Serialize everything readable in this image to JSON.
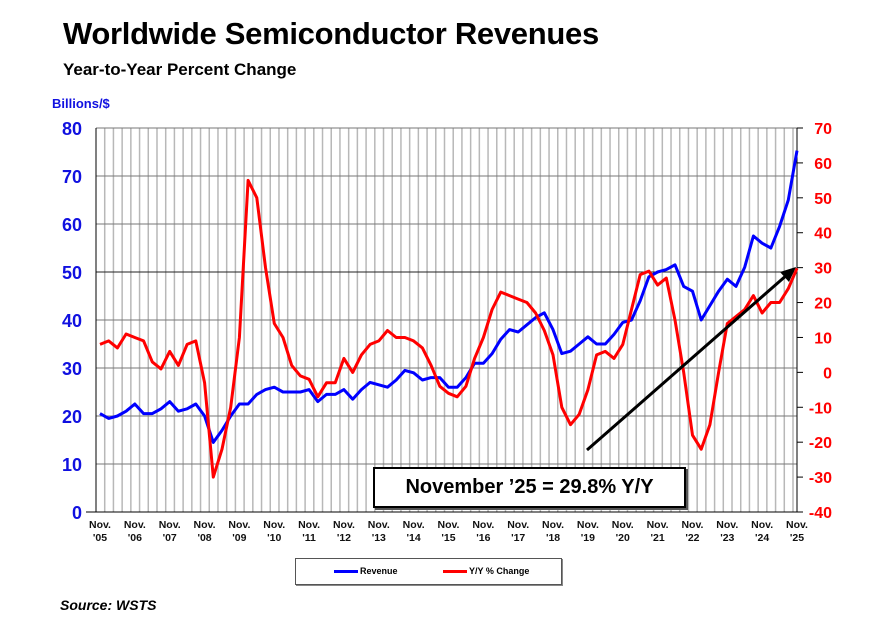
{
  "title": "Worldwide Semiconductor Revenues",
  "subtitle": "Year-to-Year Percent Change",
  "source": "Source: WSTS",
  "annotation": "November ’25 = 29.8% Y/Y",
  "chart_data": {
    "type": "line",
    "title": "Worldwide Semiconductor Revenues",
    "subtitle": "Year-to-Year Percent Change",
    "ylabel": "Billions/$",
    "ylim": [
      0,
      80
    ],
    "y2lim": [
      -40,
      70
    ],
    "yticks": [
      "0",
      "10",
      "20",
      "30",
      "40",
      "50",
      "60",
      "70",
      "80"
    ],
    "y2ticks": [
      "-40",
      "-30",
      "-20",
      "-10",
      "0",
      "10",
      "20",
      "30",
      "40",
      "50",
      "60",
      "70"
    ],
    "xtick_labels": [
      [
        "Nov.",
        "'05"
      ],
      [
        "Nov.",
        "'06"
      ],
      [
        "Nov.",
        "'07"
      ],
      [
        "Nov.",
        "'08"
      ],
      [
        "Nov.",
        "'09"
      ],
      [
        "Nov.",
        "'10"
      ],
      [
        "Nov.",
        "'11"
      ],
      [
        "Nov.",
        "'12"
      ],
      [
        "Nov.",
        "'13"
      ],
      [
        "Nov.",
        "'14"
      ],
      [
        "Nov.",
        "'15"
      ],
      [
        "Nov.",
        "'16"
      ],
      [
        "Nov.",
        "'17"
      ],
      [
        "Nov.",
        "'18"
      ],
      [
        "Nov.",
        "'19"
      ],
      [
        "Nov.",
        "'20"
      ],
      [
        "Nov.",
        "'21"
      ],
      [
        "Nov.",
        "'22"
      ],
      [
        "Nov.",
        "'23"
      ],
      [
        "Nov.",
        "'24"
      ],
      [
        "Nov.",
        "'25"
      ]
    ],
    "grid": true,
    "legend_placement": "bottom",
    "colors": {
      "revenue": "#0000ff",
      "yoy": "#ff0000",
      "axis_left": "#1010e0",
      "axis_right": "#ff0000"
    },
    "x": [
      "2005-11",
      "2006-02",
      "2006-05",
      "2006-08",
      "2006-11",
      "2007-02",
      "2007-05",
      "2007-08",
      "2007-11",
      "2008-02",
      "2008-05",
      "2008-08",
      "2008-11",
      "2009-02",
      "2009-05",
      "2009-08",
      "2009-11",
      "2010-02",
      "2010-05",
      "2010-08",
      "2010-11",
      "2011-02",
      "2011-05",
      "2011-08",
      "2011-11",
      "2012-02",
      "2012-05",
      "2012-08",
      "2012-11",
      "2013-02",
      "2013-05",
      "2013-08",
      "2013-11",
      "2014-02",
      "2014-05",
      "2014-08",
      "2014-11",
      "2015-02",
      "2015-05",
      "2015-08",
      "2015-11",
      "2016-02",
      "2016-05",
      "2016-08",
      "2016-11",
      "2017-02",
      "2017-05",
      "2017-08",
      "2017-11",
      "2018-02",
      "2018-05",
      "2018-08",
      "2018-11",
      "2019-02",
      "2019-05",
      "2019-08",
      "2019-11",
      "2020-02",
      "2020-05",
      "2020-08",
      "2020-11",
      "2021-02",
      "2021-05",
      "2021-08",
      "2021-11",
      "2022-02",
      "2022-05",
      "2022-08",
      "2022-11",
      "2023-02",
      "2023-05",
      "2023-08",
      "2023-11",
      "2024-02",
      "2024-05",
      "2024-08",
      "2024-11",
      "2025-02",
      "2025-05",
      "2025-08",
      "2025-11"
    ],
    "series": [
      {
        "name": "Revenue",
        "axis": "left",
        "values": [
          20.5,
          19.5,
          20,
          21,
          22.5,
          20.5,
          20.5,
          21.5,
          23,
          21,
          21.5,
          22.5,
          20,
          14.5,
          17,
          20,
          22.5,
          22.5,
          24.5,
          25.5,
          26,
          25,
          25,
          25,
          25.5,
          23,
          24.5,
          24.5,
          25.5,
          23.5,
          25.5,
          27,
          26.5,
          26,
          27.5,
          29.5,
          29,
          27.5,
          28,
          28,
          26,
          26,
          28,
          31,
          31,
          33,
          36,
          38,
          37.5,
          39,
          40.5,
          41.5,
          38,
          33,
          33.5,
          35,
          36.5,
          35,
          35,
          37,
          39.5,
          40,
          44,
          49,
          50,
          50.5,
          51.5,
          47,
          46,
          40,
          43,
          46,
          48.5,
          47,
          51,
          57.5,
          56,
          55,
          59.5,
          65,
          75.3
        ]
      },
      {
        "name": "Y/Y % Change",
        "axis": "right",
        "values": [
          8,
          9,
          7,
          11,
          10,
          9,
          3,
          1,
          6,
          2,
          8,
          9,
          -3,
          -30,
          -22,
          -10,
          10,
          55,
          50,
          30,
          14,
          10,
          2,
          -1,
          -2,
          -7,
          -3,
          -3,
          4,
          0,
          5,
          8,
          9,
          12,
          10,
          10,
          9,
          7,
          2,
          -4,
          -6,
          -7,
          -4,
          4,
          10,
          18,
          23,
          22,
          21,
          20,
          17,
          12,
          5,
          -10,
          -15,
          -12,
          -5,
          5,
          6,
          4,
          8,
          18,
          28,
          29,
          25,
          27,
          15,
          0,
          -18,
          -22,
          -15,
          0,
          14,
          16,
          18,
          22,
          17,
          20,
          20,
          24,
          29.8
        ]
      }
    ]
  }
}
